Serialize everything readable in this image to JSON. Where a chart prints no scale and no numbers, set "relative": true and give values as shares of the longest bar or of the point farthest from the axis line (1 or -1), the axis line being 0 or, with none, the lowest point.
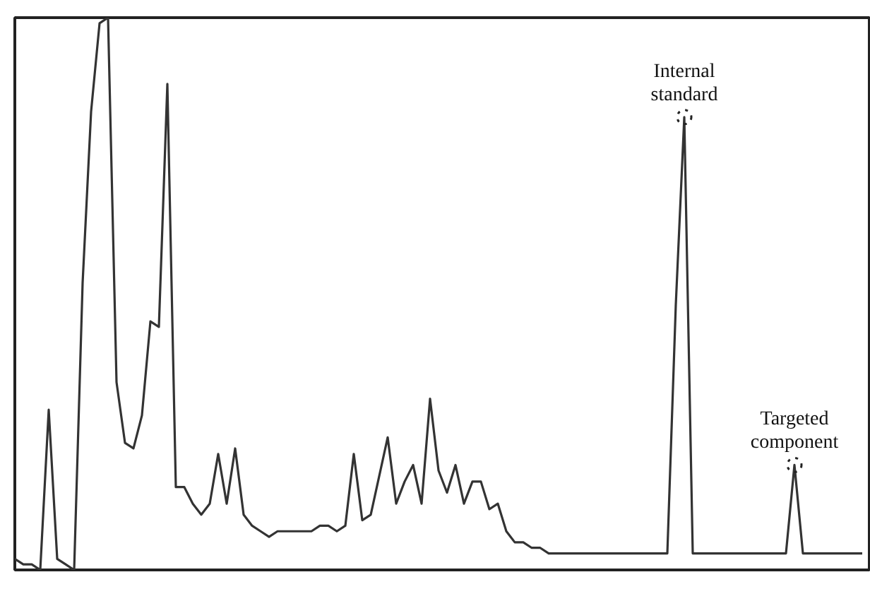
{
  "chart_data": {
    "type": "line",
    "relative": true,
    "categories": [
      null,
      null,
      null,
      null,
      null,
      null,
      null,
      null,
      null,
      null,
      null,
      null,
      null,
      null,
      null,
      null,
      null,
      null,
      null,
      null,
      null,
      null,
      null,
      null,
      null,
      null,
      null,
      null,
      null,
      null,
      null,
      null,
      null,
      null,
      null,
      null,
      null,
      null,
      null,
      null,
      null,
      null,
      null,
      null,
      null,
      null,
      null,
      null,
      null,
      null,
      null,
      null,
      null,
      null,
      null,
      null,
      null,
      null,
      null,
      null,
      null,
      null,
      null,
      null,
      null,
      null,
      null,
      null,
      null,
      null,
      null,
      null,
      null,
      null,
      null,
      null,
      null,
      null,
      null,
      null,
      null,
      null,
      null,
      null,
      null,
      null,
      null,
      null,
      null,
      null,
      null,
      null,
      null,
      null,
      null,
      null,
      null,
      null,
      null,
      null,
      null
    ],
    "series": [
      {
        "color": "#333333",
        "values": [
          0.02,
          0.01,
          0.01,
          0.0,
          0.29,
          0.02,
          0.01,
          0.0,
          0.52,
          0.83,
          0.99,
          1.0,
          0.34,
          0.23,
          0.22,
          0.28,
          0.45,
          0.44,
          0.88,
          0.15,
          0.15,
          0.12,
          0.1,
          0.12,
          0.21,
          0.12,
          0.22,
          0.1,
          0.08,
          0.07,
          0.06,
          0.07,
          0.07,
          0.07,
          0.07,
          0.07,
          0.08,
          0.08,
          0.07,
          0.08,
          0.21,
          0.09,
          0.1,
          0.17,
          0.24,
          0.12,
          0.16,
          0.19,
          0.12,
          0.31,
          0.18,
          0.14,
          0.19,
          0.12,
          0.16,
          0.16,
          0.11,
          0.12,
          0.07,
          0.05,
          0.05,
          0.04,
          0.04,
          0.03,
          0.03,
          0.03,
          0.03,
          0.03,
          0.03,
          0.03,
          0.03,
          0.03,
          0.03,
          0.03,
          0.03,
          0.03,
          0.03,
          0.03,
          0.48,
          0.82,
          0.03,
          0.03,
          0.03,
          0.03,
          0.03,
          0.03,
          0.03,
          0.03,
          0.03,
          0.03,
          0.03,
          0.03,
          0.19,
          0.03,
          0.03,
          0.03,
          0.03,
          0.03,
          0.03,
          0.03,
          0.03
        ]
      }
    ],
    "annotations": [
      {
        "text": "Internal\nstandard",
        "y": 0.82
      },
      {
        "text": "Targeted\ncomponent",
        "y": 0.19
      }
    ],
    "grid": false,
    "marker": "none",
    "line_style": "solid"
  }
}
